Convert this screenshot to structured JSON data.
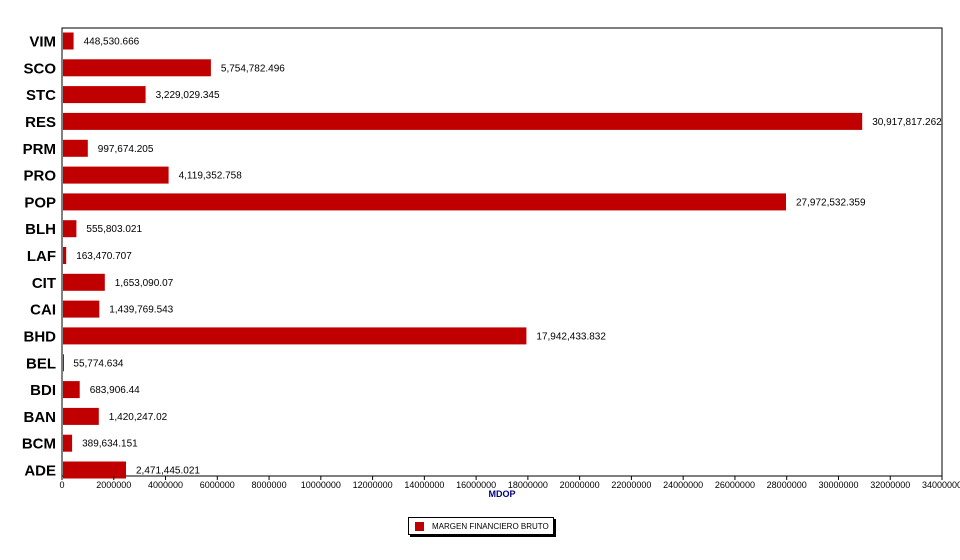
{
  "chart_data": {
    "type": "bar",
    "orientation": "horizontal",
    "categories": [
      "VIM",
      "SCO",
      "STC",
      "RES",
      "PRM",
      "PRO",
      "POP",
      "BLH",
      "LAF",
      "CIT",
      "CAI",
      "BHD",
      "BEL",
      "BDI",
      "BAN",
      "BCM",
      "ADE"
    ],
    "values": [
      448530.666,
      5754782.496,
      3229029.345,
      30917817.262,
      997674.205,
      4119352.758,
      27972532.359,
      555803.021,
      163470.707,
      1653090.07,
      1439769.543,
      17942433.832,
      55774.634,
      683906.44,
      1420247.02,
      389634.151,
      2471445.021
    ],
    "value_labels": [
      "448,530.666",
      "5,754,782.496",
      "3,229,029.345",
      "30,917,817.262",
      "997,674.205",
      "4,119,352.758",
      "27,972,532.359",
      "555,803.021",
      "163,470.707",
      "1,653,090.07",
      "1,439,769.543",
      "17,942,433.832",
      "55,774.634",
      "683,906.44",
      "1,420,247.02",
      "389,634.151",
      "2,471,445.021"
    ],
    "xlabel": "MDOP",
    "ylabel": "",
    "xlim": [
      0,
      34000000
    ],
    "x_ticks": [
      0,
      2000000,
      4000000,
      6000000,
      8000000,
      10000000,
      12000000,
      14000000,
      16000000,
      18000000,
      20000000,
      22000000,
      24000000,
      26000000,
      28000000,
      30000000,
      32000000,
      34000000
    ],
    "series": [
      {
        "name": "MARGEN FINANCIERO BRUTO",
        "color": "#c00000"
      }
    ],
    "grid": false,
    "legend_position": "bottom-center"
  }
}
